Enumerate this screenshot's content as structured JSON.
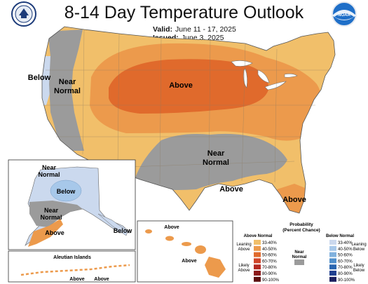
{
  "title": "8-14 Day Temperature Outlook",
  "valid": {
    "label": "Valid:",
    "value": "June 11 - 17, 2025"
  },
  "issued": {
    "label": "Issued:",
    "value": "June 3, 2025"
  },
  "colors": {
    "above_33_40": "#f1bf6a",
    "above_40_50": "#ec9a4c",
    "above_50_60": "#e06a2c",
    "near_normal": "#9b9b9b",
    "below_33_40": "#cbd9ee",
    "below_40_50": "#a7c8ea",
    "background": "#ffffff"
  },
  "map_labels": {
    "below_west": "Below",
    "near_normal_west_1": "Near",
    "near_normal_west_2": "Normal",
    "above_north": "Above",
    "near_normal_south_1": "Near",
    "near_normal_south_2": "Normal",
    "above_gulf": "Above",
    "above_florida": "Above"
  },
  "alaska_labels": {
    "near_normal_north_1": "Near",
    "near_normal_north_2": "Normal",
    "below_center": "Below",
    "near_normal_south_1": "Near",
    "near_normal_south_2": "Normal",
    "above": "Above",
    "below_panhandle": "Below"
  },
  "aleutian": {
    "title": "Aleutian Islands",
    "above_1": "Above",
    "above_2": "Above"
  },
  "hawaii": {
    "above_1": "Above",
    "above_2": "Above"
  },
  "legend": {
    "title_1": "Probability",
    "title_2": "(Percent Chance)",
    "above_header": "Above Normal",
    "below_header": "Below Normal",
    "near_1": "Near",
    "near_2": "Normal",
    "leaning_above_1": "Leaning",
    "leaning_above_2": "Above",
    "likely_above_1": "Likely",
    "likely_above_2": "Above",
    "leaning_below_1": "Leaning",
    "leaning_below_2": "Below",
    "likely_below_1": "Likely",
    "likely_below_2": "Below",
    "above_bins": [
      {
        "label": "33-40%",
        "color": "#f1bf6a"
      },
      {
        "label": "40-50%",
        "color": "#ec9a4c"
      },
      {
        "label": "50-60%",
        "color": "#e06a2c"
      },
      {
        "label": "60-70%",
        "color": "#d0462a"
      },
      {
        "label": "70-80%",
        "color": "#b42a22"
      },
      {
        "label": "80-90%",
        "color": "#8c1a1a"
      },
      {
        "label": "90-100%",
        "color": "#5c0f0f"
      }
    ],
    "below_bins": [
      {
        "label": "33-40%",
        "color": "#cbd9ee"
      },
      {
        "label": "40-50%",
        "color": "#a7c8ea"
      },
      {
        "label": "50-60%",
        "color": "#7fb0dd"
      },
      {
        "label": "60-70%",
        "color": "#4f8fcb"
      },
      {
        "label": "70-80%",
        "color": "#2a66b0"
      },
      {
        "label": "80-90%",
        "color": "#1f3f8f"
      },
      {
        "label": "90-100%",
        "color": "#1b1f5f"
      }
    ]
  },
  "logos": {
    "left": "noaa-nws-seal",
    "right": "noaa-logo",
    "right_text": "NOAA"
  }
}
